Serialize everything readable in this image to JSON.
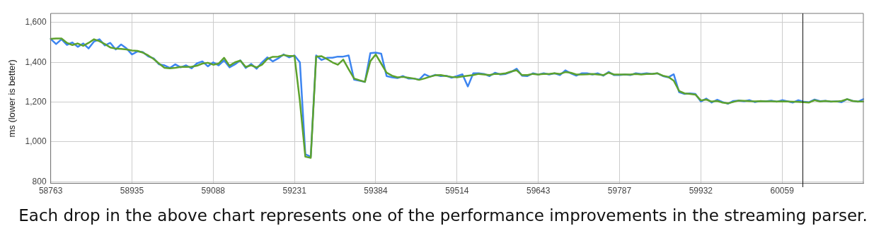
{
  "chart_data": {
    "type": "line",
    "ylabel": "ms (lower is better)",
    "categories": [
      "58763",
      null,
      null,
      null,
      null,
      null,
      null,
      null,
      null,
      null,
      null,
      null,
      null,
      null,
      null,
      "58935",
      null,
      null,
      null,
      null,
      null,
      null,
      null,
      null,
      null,
      null,
      null,
      null,
      null,
      null,
      "59088",
      null,
      null,
      null,
      null,
      null,
      null,
      null,
      null,
      null,
      null,
      null,
      null,
      null,
      null,
      "59231",
      null,
      null,
      null,
      null,
      null,
      null,
      null,
      null,
      null,
      null,
      null,
      null,
      null,
      null,
      "59384",
      null,
      null,
      null,
      null,
      null,
      null,
      null,
      null,
      null,
      null,
      null,
      null,
      null,
      null,
      "59514",
      null,
      null,
      null,
      null,
      null,
      null,
      null,
      null,
      null,
      null,
      null,
      null,
      null,
      null,
      "59643",
      null,
      null,
      null,
      null,
      null,
      null,
      null,
      null,
      null,
      null,
      null,
      null,
      null,
      null,
      "59787",
      null,
      null,
      null,
      null,
      null,
      null,
      null,
      null,
      null,
      null,
      null,
      null,
      null,
      null,
      "59932",
      null,
      null,
      null,
      null,
      null,
      null,
      null,
      null,
      null,
      null,
      null,
      null,
      null,
      null,
      "60059",
      null,
      null,
      null,
      null,
      null,
      null,
      null,
      null,
      null,
      null,
      null,
      null,
      null,
      null,
      null
    ],
    "series": [
      {
        "color": "#3d85f0",
        "values": [
          1518,
          1492,
          1516,
          1488,
          1500,
          1478,
          1495,
          1470,
          1505,
          1516,
          1485,
          1498,
          1465,
          1490,
          1470,
          1440,
          1455,
          1452,
          1430,
          1420,
          1390,
          1385,
          1372,
          1390,
          1375,
          1385,
          1370,
          1395,
          1405,
          1380,
          1400,
          1385,
          1410,
          1375,
          1390,
          1410,
          1372,
          1392,
          1368,
          1400,
          1425,
          1405,
          1420,
          1440,
          1425,
          1435,
          1400,
          938,
          926,
          1435,
          1412,
          1423,
          1423,
          1429,
          1429,
          1435,
          1313,
          1308,
          1302,
          1446,
          1449,
          1444,
          1331,
          1325,
          1321,
          1331,
          1319,
          1319,
          1313,
          1340,
          1328,
          1337,
          1331,
          1333,
          1323,
          1331,
          1340,
          1279,
          1345,
          1345,
          1342,
          1331,
          1348,
          1339,
          1342,
          1352,
          1368,
          1333,
          1331,
          1345,
          1339,
          1345,
          1339,
          1345,
          1336,
          1360,
          1345,
          1333,
          1345,
          1345,
          1339,
          1345,
          1333,
          1352,
          1336,
          1336,
          1339,
          1336,
          1345,
          1342,
          1345,
          1342,
          1345,
          1331,
          1325,
          1340,
          1250,
          1241,
          1244,
          1241,
          1203,
          1218,
          1198,
          1212,
          1201,
          1192,
          1206,
          1208,
          1204,
          1210,
          1200,
          1206,
          1204,
          1208,
          1202,
          1210,
          1204,
          1198,
          1210,
          1202,
          1200,
          1213,
          1205,
          1207,
          1202,
          1204,
          1200,
          1215,
          1207,
          1202,
          1215
        ]
      },
      {
        "color": "#5da22d",
        "values": [
          1518,
          1520,
          1520,
          1498,
          1487,
          1495,
          1483,
          1498,
          1516,
          1506,
          1492,
          1475,
          1469,
          1468,
          1465,
          1460,
          1458,
          1449,
          1435,
          1417,
          1394,
          1373,
          1370,
          1373,
          1377,
          1377,
          1378,
          1383,
          1394,
          1398,
          1388,
          1394,
          1423,
          1383,
          1400,
          1409,
          1377,
          1385,
          1375,
          1388,
          1417,
          1428,
          1429,
          1437,
          1432,
          1432,
          1204,
          926,
          920,
          1429,
          1431,
          1417,
          1400,
          1388,
          1414,
          1365,
          1319,
          1310,
          1302,
          1406,
          1440,
          1394,
          1348,
          1333,
          1325,
          1327,
          1323,
          1319,
          1312,
          1319,
          1328,
          1335,
          1336,
          1331,
          1327,
          1325,
          1329,
          1333,
          1336,
          1342,
          1339,
          1336,
          1342,
          1342,
          1345,
          1354,
          1360,
          1336,
          1336,
          1342,
          1339,
          1342,
          1342,
          1345,
          1342,
          1351,
          1348,
          1339,
          1339,
          1340,
          1342,
          1339,
          1336,
          1348,
          1339,
          1339,
          1339,
          1339,
          1342,
          1339,
          1342,
          1342,
          1345,
          1333,
          1327,
          1308,
          1256,
          1244,
          1241,
          1238,
          1209,
          1213,
          1203,
          1206,
          1198,
          1194,
          1201,
          1208,
          1207,
          1205,
          1204,
          1205,
          1204,
          1204,
          1203,
          1204,
          1203,
          1202,
          1201,
          1200,
          1198,
          1210,
          1203,
          1206,
          1203,
          1203,
          1206,
          1215,
          1206,
          1203,
          1203
        ]
      }
    ],
    "ylim": [
      792,
      1646
    ],
    "yticks": [
      {
        "value": 800,
        "label": "800"
      },
      {
        "value": 1000,
        "label": "1,000"
      },
      {
        "value": 1200,
        "label": "1,200"
      },
      {
        "value": 1400,
        "label": "1,400"
      },
      {
        "value": 1600,
        "label": "1,600"
      }
    ],
    "grid": true,
    "legend": false,
    "marker": "none",
    "line_style": "solid",
    "annotations": [
      "Each drop in the above chart represents one of the performance improvements in the streaming parser."
    ]
  }
}
